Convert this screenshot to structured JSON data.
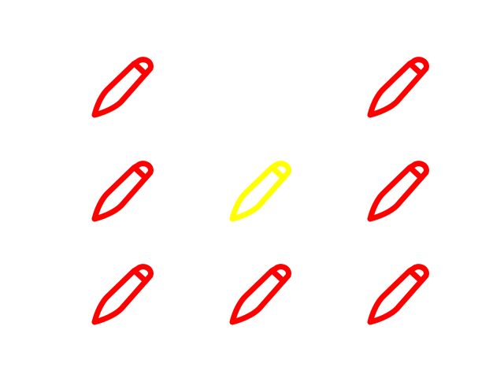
{
  "board": {
    "rows": 3,
    "cols": 3,
    "icon": "pencil-icon",
    "colors": {
      "default": "#ff0000",
      "highlight": "#ffff00"
    },
    "cells": [
      [
        {
          "present": true,
          "state": "default"
        },
        {
          "present": false,
          "state": "empty"
        },
        {
          "present": true,
          "state": "default"
        }
      ],
      [
        {
          "present": true,
          "state": "default"
        },
        {
          "present": true,
          "state": "highlight"
        },
        {
          "present": true,
          "state": "default"
        }
      ],
      [
        {
          "present": true,
          "state": "default"
        },
        {
          "present": true,
          "state": "default"
        },
        {
          "present": true,
          "state": "default"
        }
      ]
    ]
  }
}
